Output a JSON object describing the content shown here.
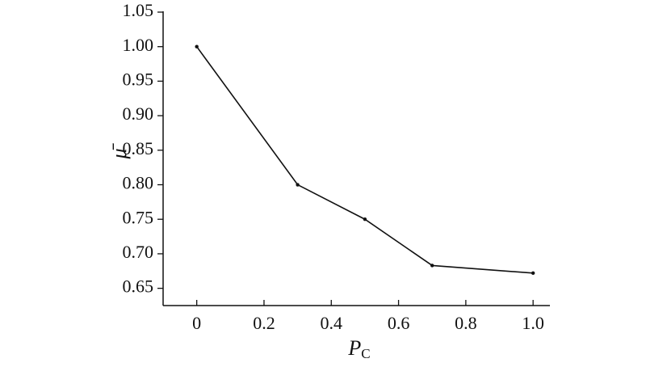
{
  "chart_data": {
    "type": "line",
    "x_label": {
      "main": "P",
      "subscript": "C"
    },
    "y_label": "μ̄",
    "x": [
      0,
      0.3,
      0.5,
      0.7,
      1.0
    ],
    "series": [
      {
        "color": "#111111",
        "values": [
          1.0,
          0.8,
          0.75,
          0.683,
          0.672
        ]
      }
    ],
    "xlim": [
      -0.1,
      1.05
    ],
    "ylim": [
      0.625,
      1.05
    ],
    "xticks": [
      0,
      0.2,
      0.4,
      0.6,
      0.8,
      {
        "value": 1,
        "label": "1.0"
      }
    ],
    "yticks": [
      0.65,
      {
        "value": 0.7,
        "label": "0.70"
      },
      0.75,
      {
        "value": 0.8,
        "label": "0.80"
      },
      0.85,
      {
        "value": 0.9,
        "label": "0.90"
      },
      0.95,
      {
        "value": 1,
        "label": "1.00"
      },
      1.05
    ]
  }
}
